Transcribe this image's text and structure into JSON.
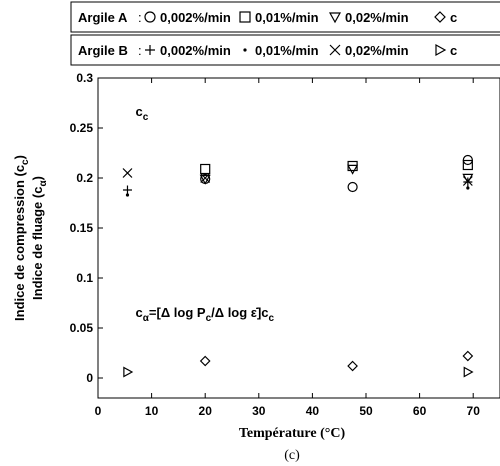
{
  "legend": {
    "row1": {
      "name": "Argile A",
      "entries": [
        {
          "marker": "circle",
          "label": "0,002%/min"
        },
        {
          "marker": "square",
          "label": "0,01%/min"
        },
        {
          "marker": "triangle-down",
          "label": "0,02%/min"
        },
        {
          "marker": "diamond",
          "label": "c"
        }
      ]
    },
    "row2": {
      "name": "Argile B",
      "entries": [
        {
          "marker": "plus",
          "label": "0,002%/min"
        },
        {
          "marker": "dot",
          "label": "0,01%/min"
        },
        {
          "marker": "cross",
          "label": "0,02%/min"
        },
        {
          "marker": "triangle-right",
          "label": "c"
        }
      ]
    }
  },
  "chart_data": {
    "type": "scatter",
    "xlabel": "Température (°C)",
    "ylabel_line1": "Indice de compression (c",
    "ylabel_line1_sub": "c",
    "ylabel_line2": "Indice de fluage (c",
    "ylabel_line2_sub": "α",
    "caption": "(c)",
    "xlim": [
      0,
      75
    ],
    "ylim": [
      -0.02,
      0.3
    ],
    "xticks": [
      0,
      10,
      20,
      30,
      40,
      50,
      60,
      70
    ],
    "yticks": [
      0,
      0.05,
      0.1,
      0.15,
      0.2,
      0.25,
      0.3
    ],
    "ytick_labels": [
      "0",
      "0.05",
      "0.1",
      "0.15",
      "0.2",
      "0.25",
      "0.3"
    ],
    "annotation_cc": {
      "main": "c",
      "sub": "c",
      "x": 7,
      "y": 0.262
    },
    "annotation_formula": {
      "x": 7,
      "y": 0.061,
      "parts": [
        {
          "t": "c",
          "sub": false
        },
        {
          "t": "α",
          "sub": true
        },
        {
          "t": "=[Δ log P",
          "sub": false
        },
        {
          "t": "c",
          "sub": true
        },
        {
          "t": "/Δ log ε̇]c",
          "sub": false
        },
        {
          "t": "c",
          "sub": true
        }
      ]
    },
    "series": [
      {
        "name": "Argile A 0,002%/min",
        "marker": "circle",
        "x": [
          20,
          47.5,
          69
        ],
        "y": [
          0.199,
          0.191,
          0.218
        ]
      },
      {
        "name": "Argile A 0,01%/min",
        "marker": "square",
        "x": [
          20,
          47.5,
          69
        ],
        "y": [
          0.209,
          0.212,
          0.213
        ]
      },
      {
        "name": "Argile A 0,02%/min",
        "marker": "triangle-down",
        "x": [
          20,
          47.5,
          69
        ],
        "y": [
          0.199,
          0.209,
          0.2
        ]
      },
      {
        "name": "Argile A c",
        "marker": "diamond",
        "x": [
          20,
          47.5,
          69
        ],
        "y": [
          0.017,
          0.012,
          0.022
        ]
      },
      {
        "name": "Argile B 0,002%/min",
        "marker": "plus",
        "x": [
          5.5,
          69
        ],
        "y": [
          0.188,
          0.196
        ]
      },
      {
        "name": "Argile B 0,01%/min",
        "marker": "dot",
        "x": [
          5.5,
          69
        ],
        "y": [
          0.183,
          0.19
        ]
      },
      {
        "name": "Argile B 0,02%/min",
        "marker": "cross",
        "x": [
          5.5,
          20,
          69
        ],
        "y": [
          0.205,
          0.2,
          0.197
        ]
      },
      {
        "name": "Argile B c",
        "marker": "triangle-right",
        "x": [
          5.5,
          69
        ],
        "y": [
          0.006,
          0.006
        ]
      }
    ]
  }
}
